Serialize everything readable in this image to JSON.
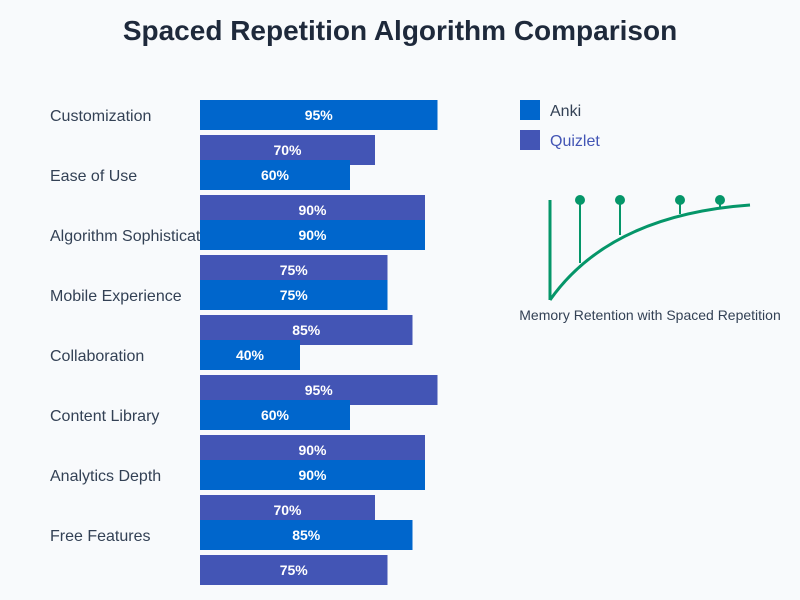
{
  "chart_data": {
    "type": "bar",
    "orientation": "horizontal",
    "title": "Spaced Repetition Algorithm Comparison",
    "categories": [
      "Customization",
      "Ease of Use",
      "Algorithm Sophistication",
      "Mobile Experience",
      "Collaboration",
      "Content Library",
      "Analytics Depth",
      "Free Features"
    ],
    "series": [
      {
        "name": "Anki",
        "color": "#0066cc",
        "values": [
          95,
          60,
          90,
          75,
          40,
          60,
          90,
          85
        ]
      },
      {
        "name": "Quizlet",
        "color": "#4355b5",
        "values": [
          70,
          90,
          75,
          85,
          95,
          90,
          70,
          75
        ]
      }
    ],
    "xlim": [
      0,
      100
    ],
    "value_suffix": "%",
    "legend_position": "top-right",
    "inset_caption": "Memory Retention with Spaced Repetition",
    "inset_color": "#059669"
  }
}
